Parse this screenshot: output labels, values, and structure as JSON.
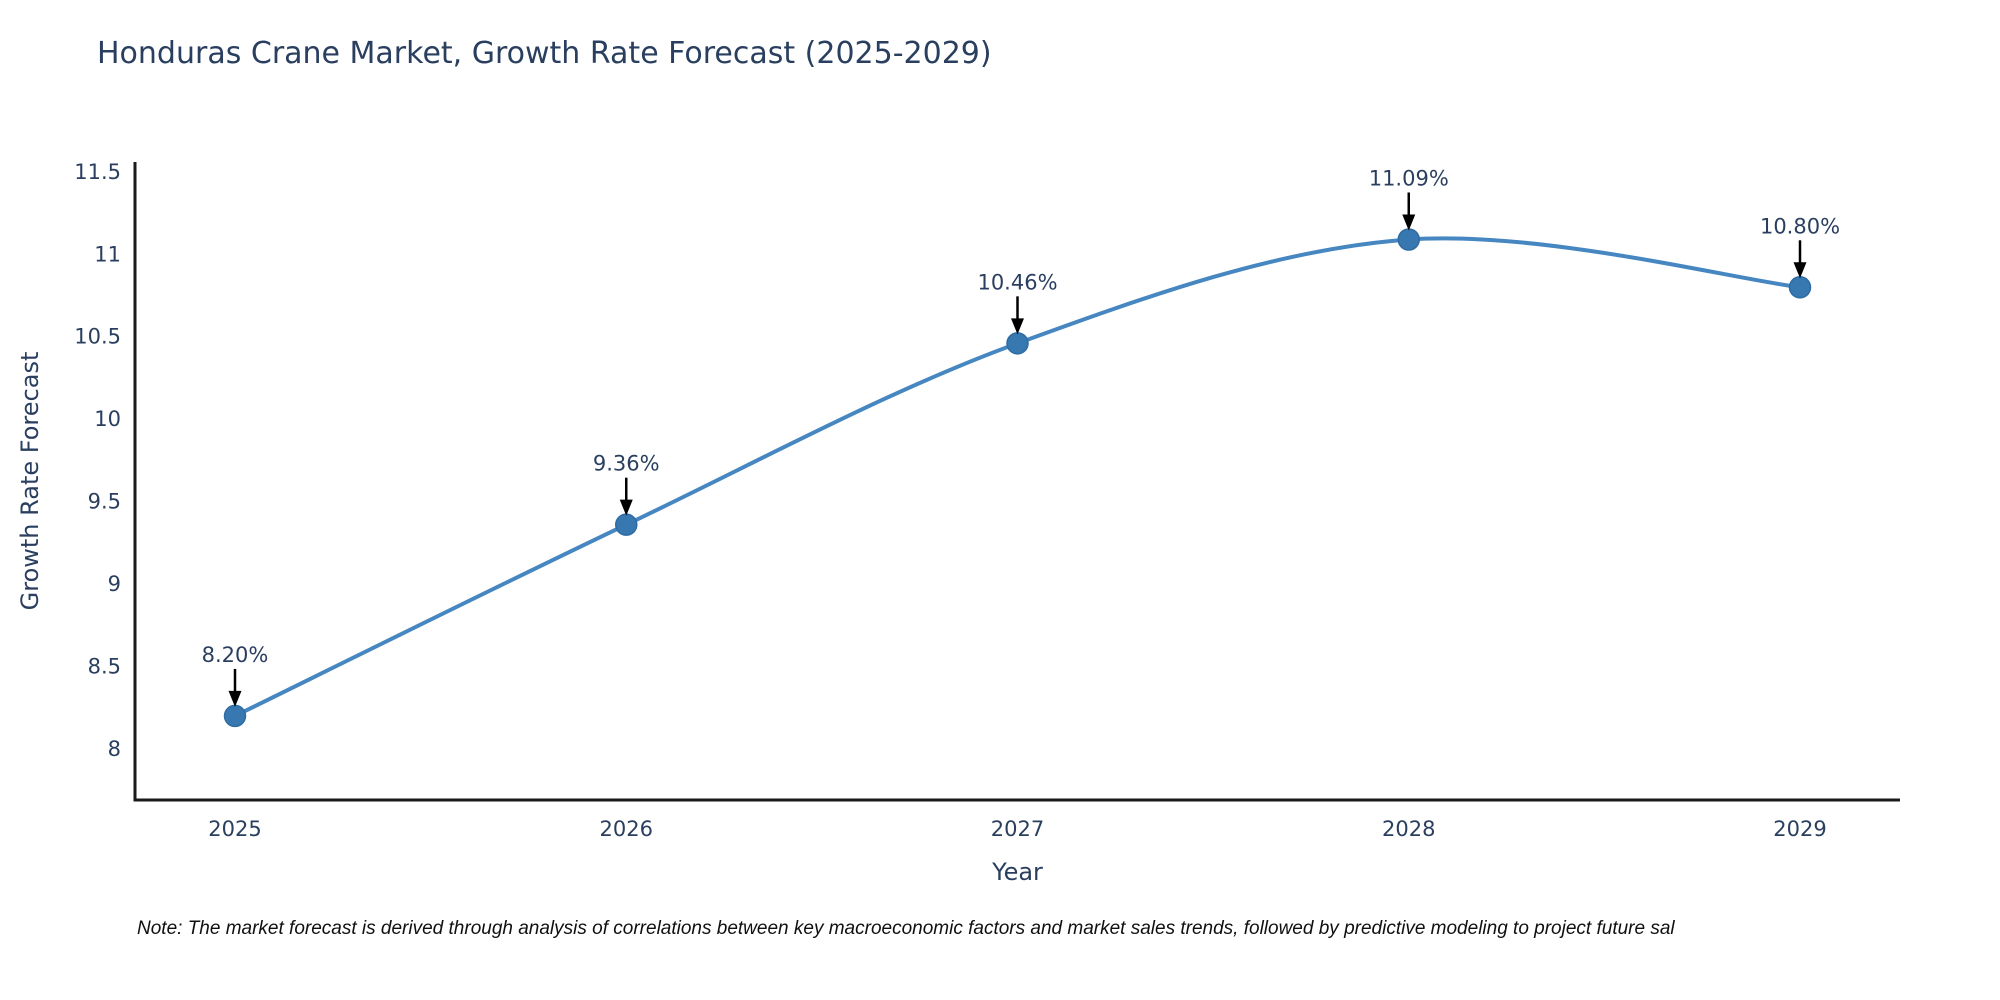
{
  "note": "Note: The market forecast is derived through analysis of correlations between key macroeconomic factors and market sales trends, followed by predictive modeling to project future sal",
  "chart_data": {
    "type": "line",
    "title": "Honduras Crane Market, Growth Rate Forecast (2025-2029)",
    "x": [
      "2025",
      "2026",
      "2027",
      "2028",
      "2029"
    ],
    "series": [
      {
        "name": "Growth Rate Forecast",
        "values": [
          8.2,
          9.36,
          10.46,
          11.09,
          10.8
        ],
        "point_labels": [
          "8.20%",
          "9.36%",
          "10.46%",
          "11.09%",
          "10.80%"
        ]
      }
    ],
    "xlabel": "Year",
    "ylabel": "Growth Rate Forecast",
    "ylim": [
      7.69,
      11.56
    ],
    "yticks": [
      8,
      8.5,
      9,
      9.5,
      10,
      10.5,
      11,
      11.5
    ],
    "grid": false,
    "legend_position": "none",
    "line_shape": "spline",
    "colors": {
      "line": "#4687c1",
      "marker": "#3778b0",
      "marker_edge": "#2f6ba3",
      "axis": "#1a1a1a",
      "text": "#2a3f5f",
      "annotation_arrow": "#000000"
    }
  }
}
